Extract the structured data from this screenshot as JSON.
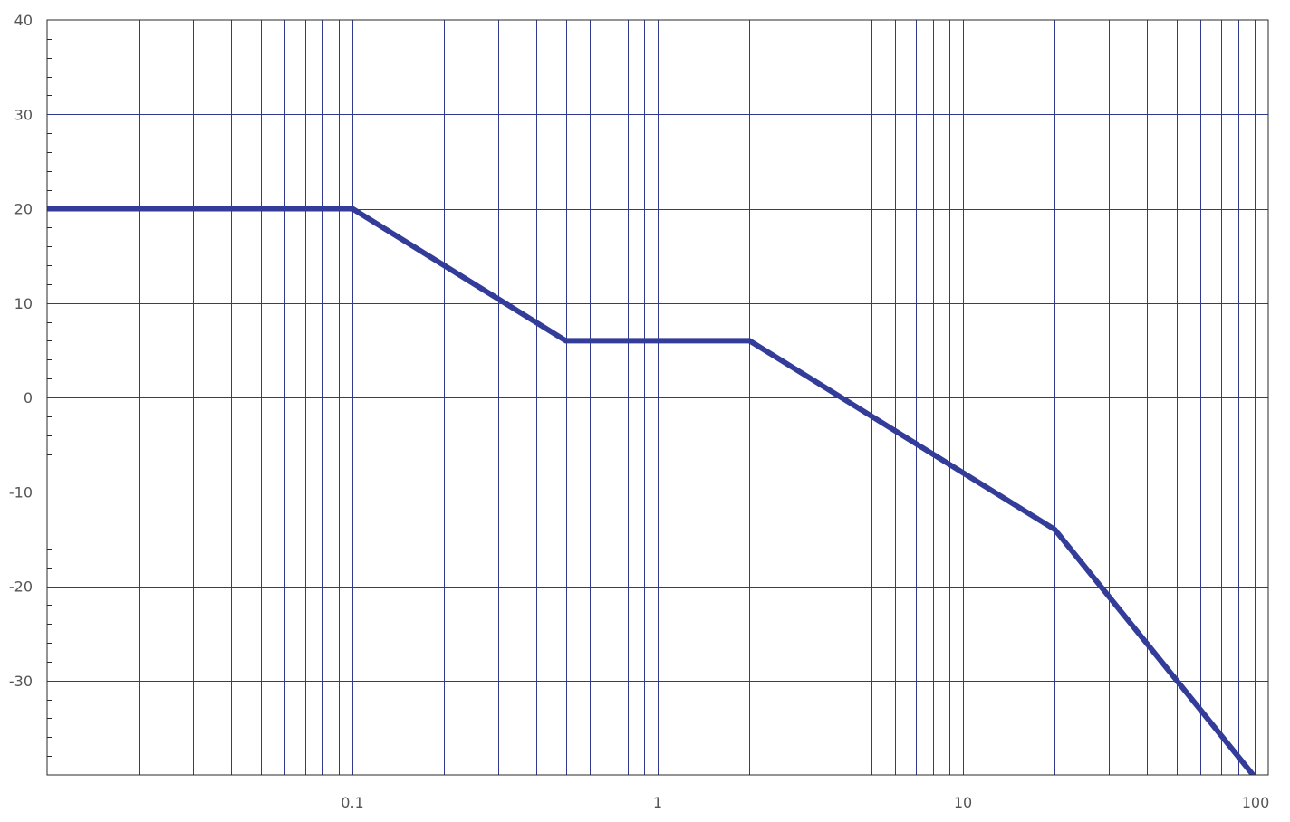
{
  "chart_data": {
    "type": "line",
    "title": "",
    "xlabel": "",
    "ylabel": "",
    "x_scale": "log",
    "xlim": [
      0.01,
      100
    ],
    "ylim": [
      -40,
      40
    ],
    "grid": true,
    "x_tick_labels": [
      "0.1",
      "1",
      "10",
      "100"
    ],
    "x_tick_values": [
      0.1,
      1,
      10,
      100
    ],
    "y_tick_labels": [
      "40",
      "30",
      "20",
      "10",
      "0",
      "-10",
      "-20",
      "-30"
    ],
    "y_tick_values": [
      40,
      30,
      20,
      10,
      0,
      -10,
      -20,
      -30
    ],
    "series": [
      {
        "color": "#333d99",
        "x": [
          0.01,
          0.1,
          0.5,
          2,
          20,
          100
        ],
        "y": [
          20,
          20,
          6,
          6,
          -14,
          -42
        ]
      }
    ]
  }
}
